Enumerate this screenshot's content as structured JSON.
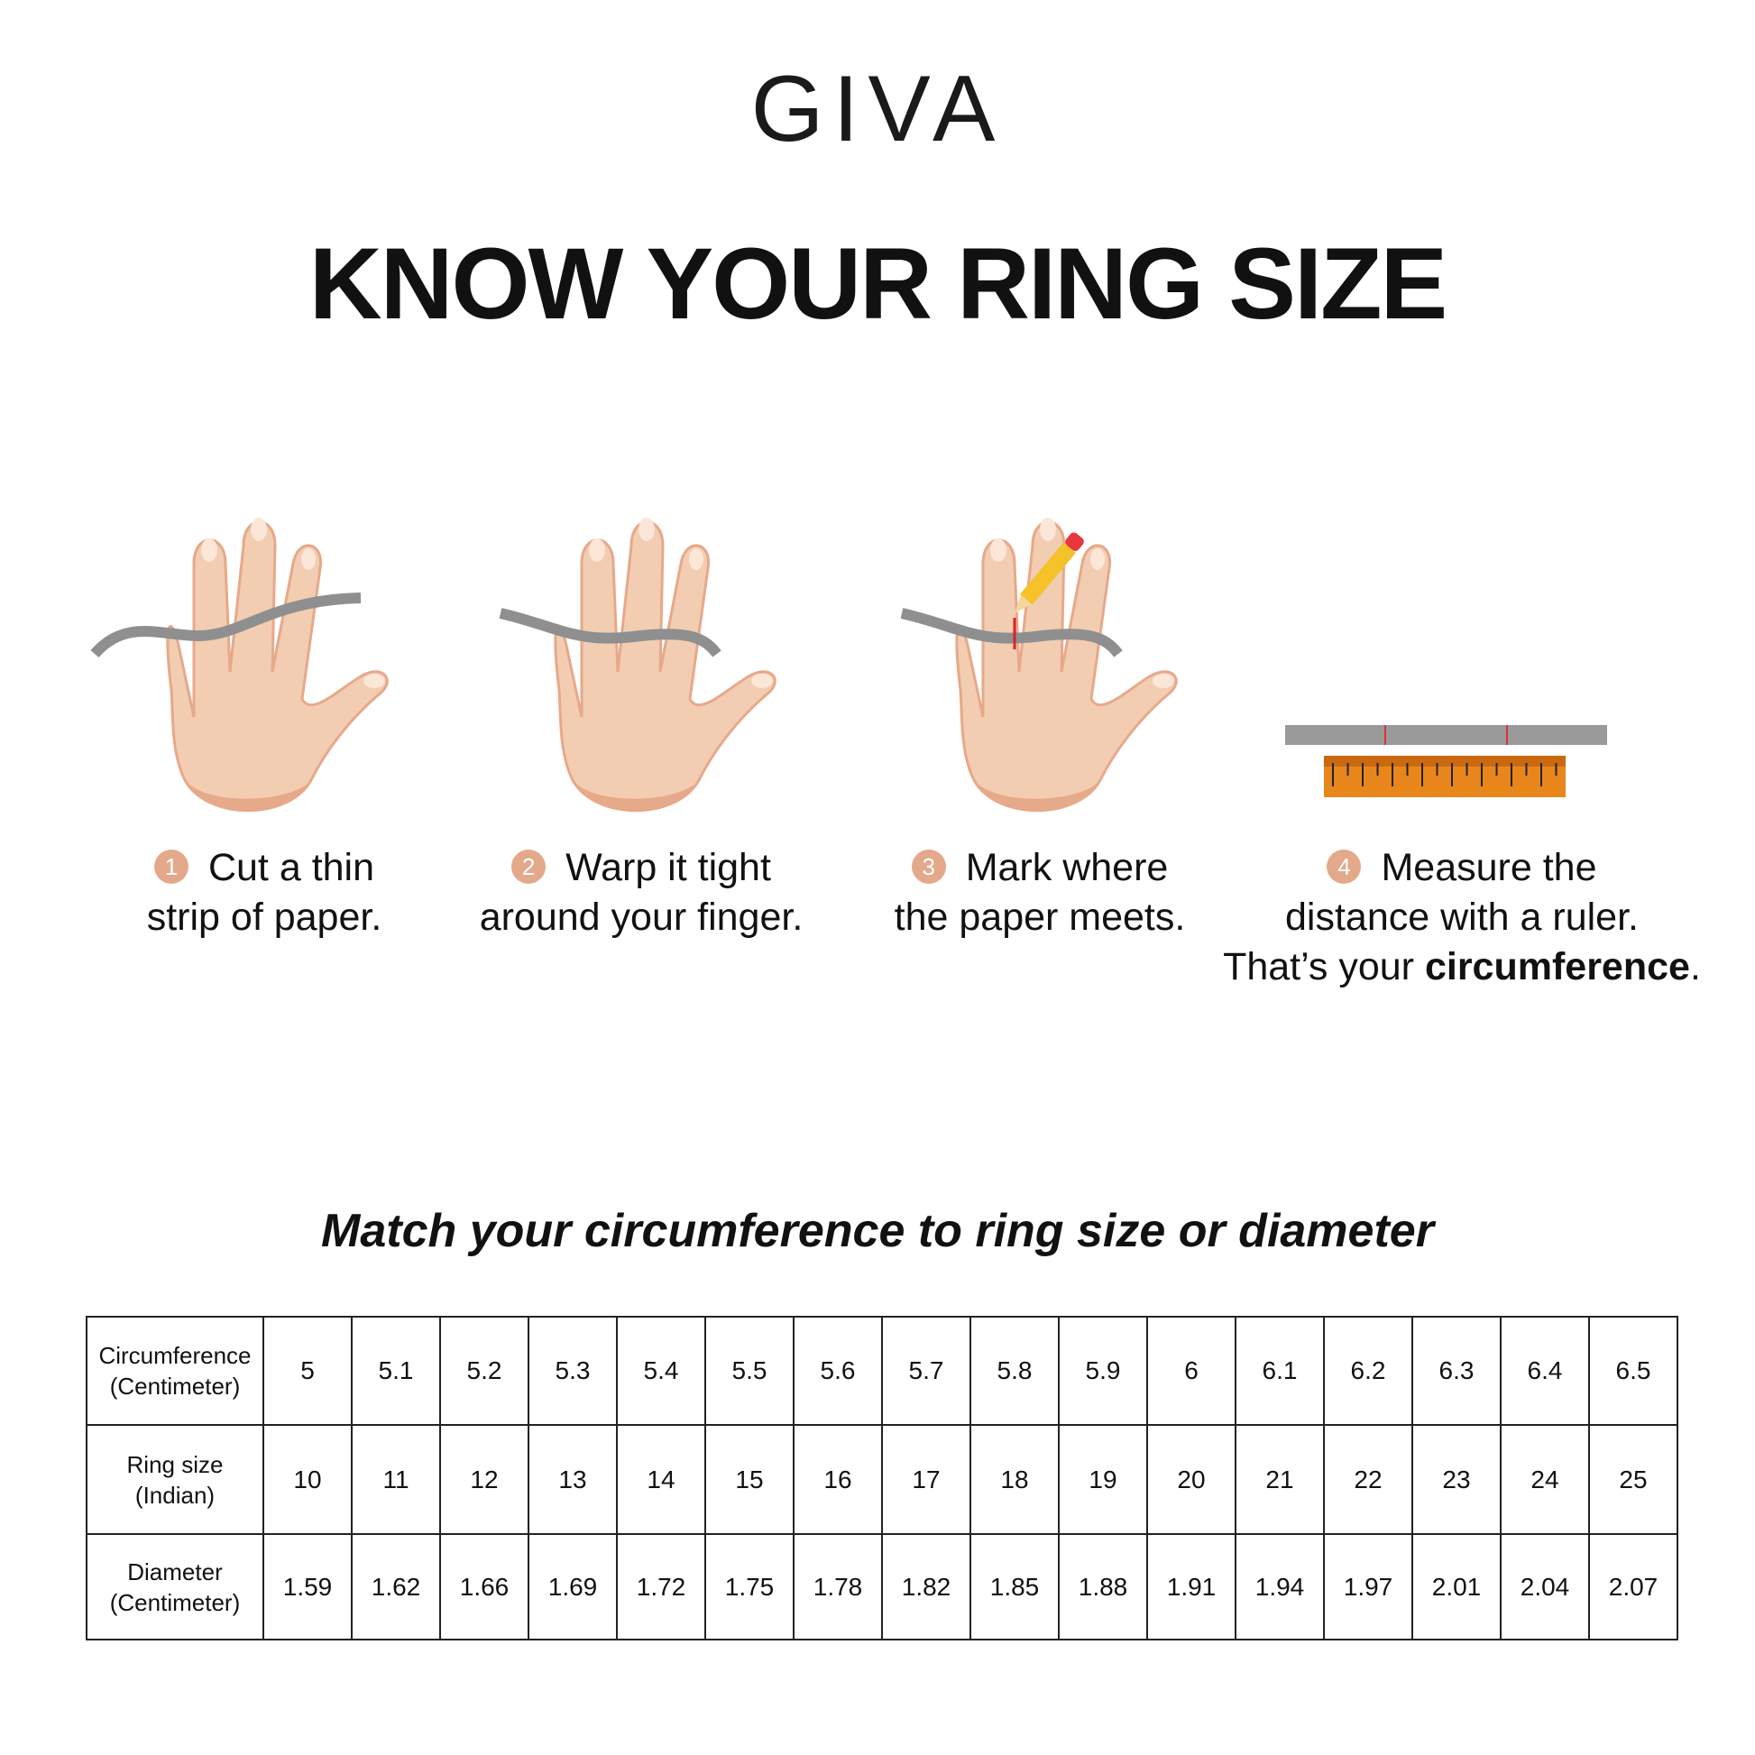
{
  "brand": {
    "logo": "GIVA"
  },
  "title": "KNOW YOUR RING SIZE",
  "steps": [
    {
      "number": "1",
      "line1": "Cut a thin",
      "line2": "strip of paper."
    },
    {
      "number": "2",
      "line1": "Warp it tight",
      "line2": "around your finger."
    },
    {
      "number": "3",
      "line1": "Mark where",
      "line2": "the paper meets."
    },
    {
      "number": "4",
      "line1": "Measure the",
      "line2": "distance with a ruler.",
      "line3_prefix": "That’s your ",
      "line3_bold": "circumference",
      "line3_suffix": "."
    }
  ],
  "subtitle": "Match your circumference to ring size or diameter",
  "table": {
    "rows": [
      {
        "label1": "Circumference",
        "label2": "(Centimeter)",
        "values": [
          "5",
          "5.1",
          "5.2",
          "5.3",
          "5.4",
          "5.5",
          "5.6",
          "5.7",
          "5.8",
          "5.9",
          "6",
          "6.1",
          "6.2",
          "6.3",
          "6.4",
          "6.5"
        ]
      },
      {
        "label1": "Ring size",
        "label2": "(Indian)",
        "values": [
          "10",
          "11",
          "12",
          "13",
          "14",
          "15",
          "16",
          "17",
          "18",
          "19",
          "20",
          "21",
          "22",
          "23",
          "24",
          "25"
        ]
      },
      {
        "label1": "Diameter",
        "label2": "(Centimeter)",
        "values": [
          "1.59",
          "1.62",
          "1.66",
          "1.69",
          "1.72",
          "1.75",
          "1.78",
          "1.82",
          "1.85",
          "1.88",
          "1.91",
          "1.94",
          "1.97",
          "2.01",
          "2.04",
          "2.07"
        ]
      }
    ]
  },
  "colors": {
    "skin": "#f2cdb2",
    "skin_shadow": "#e6a98a",
    "badge": "#e3a98a",
    "paper": "#8f8f8f",
    "ruler": "#e8861c"
  }
}
